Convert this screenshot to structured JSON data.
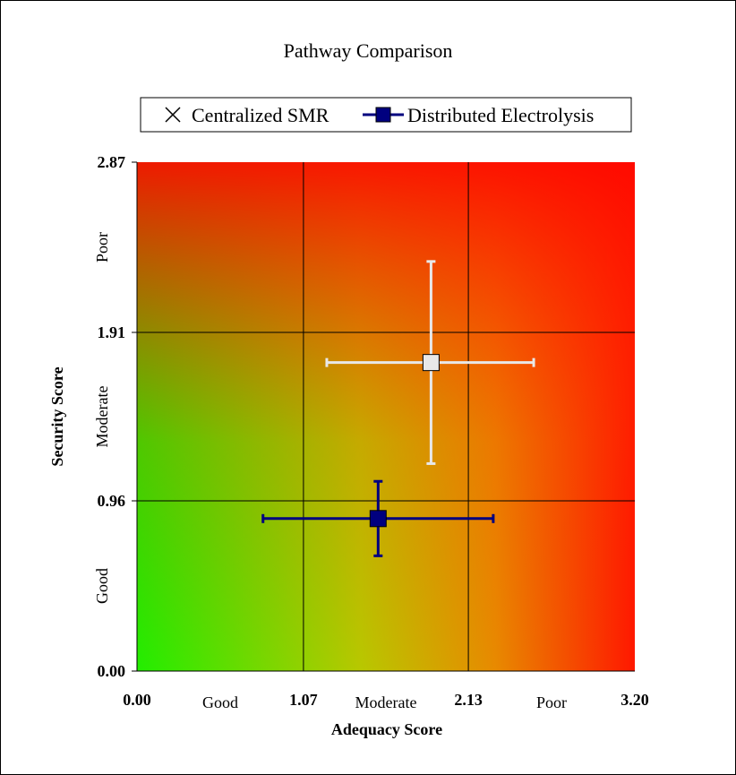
{
  "chart_data": {
    "type": "scatter",
    "title": "Pathway Comparison",
    "xlabel": "Adequacy Score",
    "ylabel": "Security Score",
    "xlim": [
      0,
      3.2
    ],
    "ylim": [
      0,
      2.87
    ],
    "x_ticks": [
      "0.00",
      "1.07",
      "2.13",
      "3.20"
    ],
    "y_ticks": [
      "0.00",
      "0.96",
      "1.91",
      "2.87"
    ],
    "x_tick_values": [
      0,
      1.07,
      2.13,
      3.2
    ],
    "y_tick_values": [
      0,
      0.96,
      1.91,
      2.87
    ],
    "x_categories": [
      "Good",
      "Moderate",
      "Poor"
    ],
    "y_categories": [
      "Good",
      "Moderate",
      "Poor"
    ],
    "grid": true,
    "background": "green-to-red gradient (good at origin, poor at top-right)",
    "legend_position": "top",
    "series": [
      {
        "name": "Centralized SMR",
        "marker": "x-cross",
        "point_marker": "square",
        "color": "#e8e8e8",
        "x": 1.89,
        "y": 1.74,
        "x_err": [
          1.22,
          2.55
        ],
        "y_err": [
          1.17,
          2.31
        ]
      },
      {
        "name": "Distributed Electrolysis",
        "marker": "square",
        "color": "#00007f",
        "x": 1.55,
        "y": 0.86,
        "x_err": [
          0.81,
          2.29
        ],
        "y_err": [
          0.65,
          1.07
        ]
      }
    ]
  }
}
